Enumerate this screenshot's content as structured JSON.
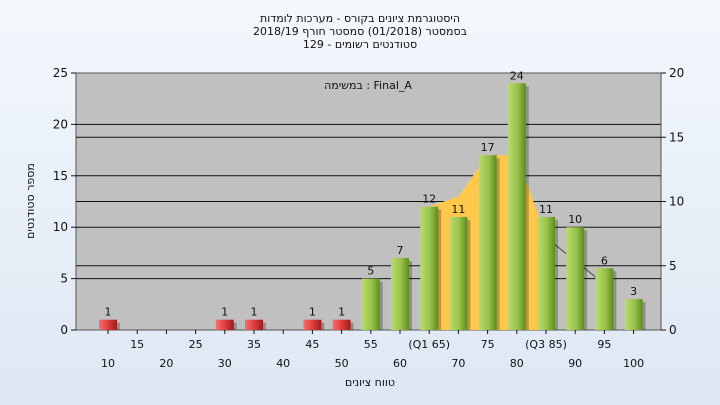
{
  "header": {
    "line1": "היסטוגרמת ציונים בקורס - מערכות לומדות",
    "line2": "בסמסטר  (01/2018)  סמסטר חורף 2018/19",
    "line3": "סטודנטים רשומים - 129"
  },
  "chart_data": {
    "type": "bar",
    "annotation": "במשימה : Final_A",
    "ylabel": "מספר סטודנטים",
    "xlabel": "טווח ציונים",
    "ylim": [
      0,
      25
    ],
    "y2lim": [
      0,
      20
    ],
    "yticks": [
      0,
      5,
      10,
      15,
      20,
      25
    ],
    "y2ticks": [
      0,
      5,
      10,
      15,
      20
    ],
    "categories": [
      "10",
      "15",
      "20",
      "25",
      "30",
      "35",
      "40",
      "45",
      "50",
      "55",
      "60",
      "(Q1 65)",
      "70",
      "75",
      "80",
      "(Q3 85)",
      "90",
      "95",
      "100"
    ],
    "values": [
      1,
      0,
      0,
      0,
      1,
      1,
      0,
      1,
      1,
      5,
      7,
      12,
      11,
      17,
      24,
      11,
      10,
      6,
      3
    ],
    "value_labels": [
      "1",
      "",
      "",
      "",
      "1",
      "1",
      "",
      "1",
      "1",
      "5",
      "7",
      "12",
      "11",
      "17",
      "24",
      "11",
      "10",
      "6",
      "3"
    ],
    "area_values": [
      null,
      null,
      null,
      null,
      null,
      null,
      null,
      null,
      null,
      null,
      null,
      12,
      13,
      17,
      17,
      9,
      null,
      null,
      null
    ],
    "colors": {
      "fail": "#d93a3a",
      "pass": "#98c24a",
      "area": "#ffc84a",
      "plot_bg": "#c0c0c0"
    }
  }
}
